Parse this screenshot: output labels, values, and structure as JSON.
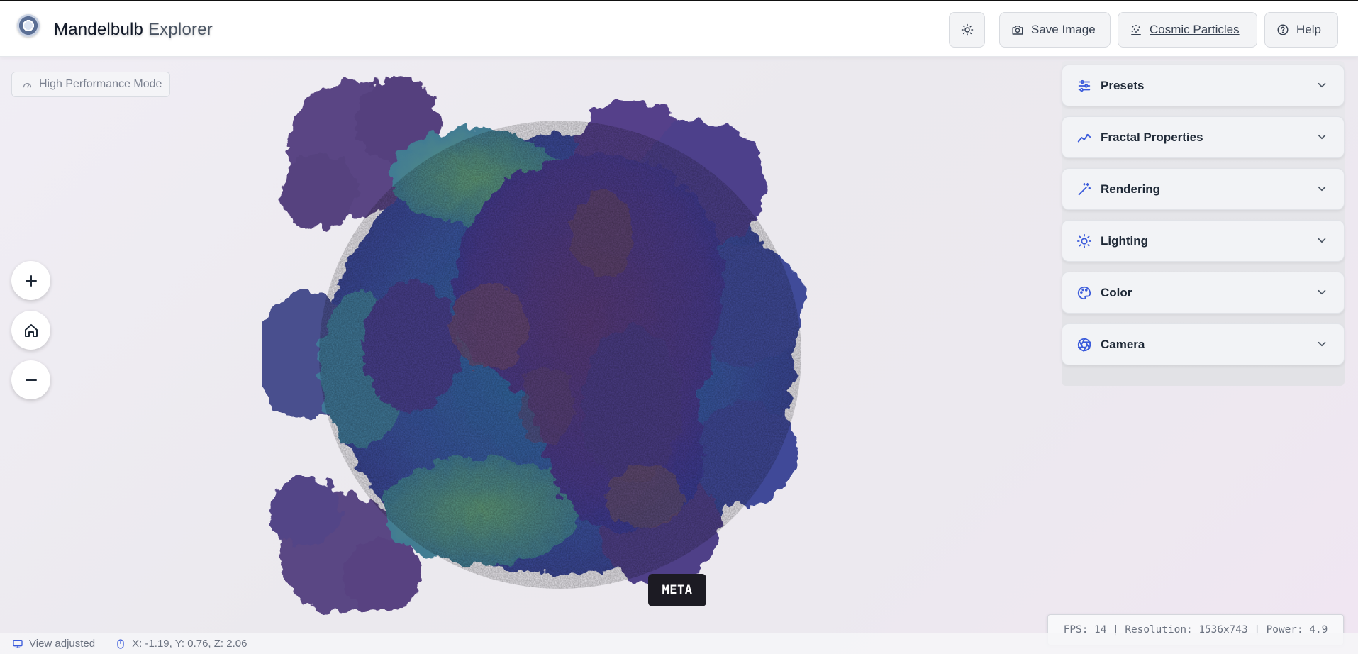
{
  "header": {
    "title_main": "Mandelbulb",
    "title_sub": "Explorer",
    "buttons": {
      "theme_icon": "sun-icon",
      "save_label": "Save Image",
      "particles_label": "Cosmic Particles",
      "help_label": "Help"
    }
  },
  "viewport": {
    "perf_mode_label": "High Performance Mode",
    "meta_tag": "META",
    "zoom_controls": [
      "plus-icon",
      "home-icon",
      "minus-icon"
    ]
  },
  "panel": {
    "sections": [
      {
        "label": "Presets",
        "icon": "sliders-icon"
      },
      {
        "label": "Fractal Properties",
        "icon": "trend-icon"
      },
      {
        "label": "Rendering",
        "icon": "wand-icon"
      },
      {
        "label": "Lighting",
        "icon": "sun-icon"
      },
      {
        "label": "Color",
        "icon": "palette-icon"
      },
      {
        "label": "Camera",
        "icon": "aperture-icon"
      }
    ]
  },
  "stats": {
    "text": "FPS: 14 | Resolution: 1536x743 | Power: 4.9"
  },
  "status": {
    "view": "View adjusted",
    "coords": "X: -1.19, Y: 0.76, Z: 2.06"
  },
  "colors": {
    "accent": "#3b5bdb",
    "fractal_purple": "#4a3a8a",
    "fractal_blue": "#3c67a8",
    "fractal_green": "#4e8a78"
  }
}
